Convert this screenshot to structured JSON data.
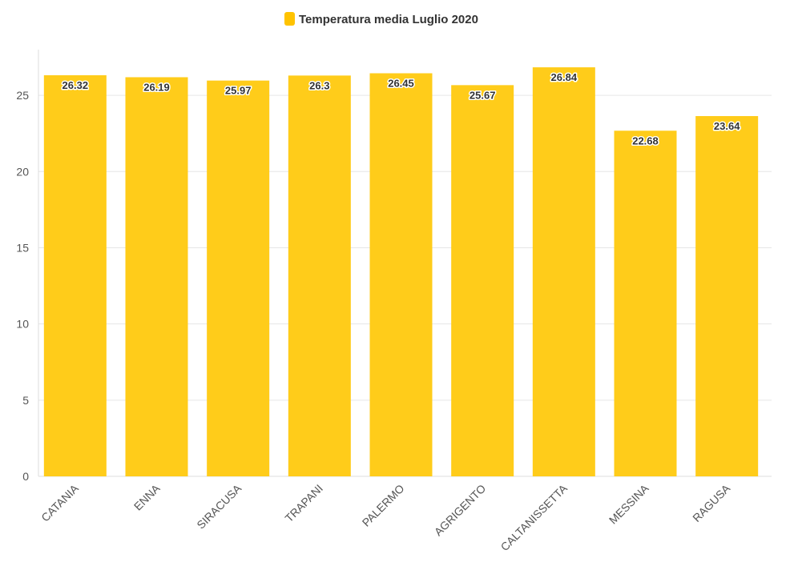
{
  "chart_data": {
    "type": "bar",
    "categories": [
      "CATANIA",
      "ENNA",
      "SIRACUSA",
      "TRAPANI",
      "PALERMO",
      "AGRIGENTO",
      "CALTANISSETTA",
      "MESSINA",
      "RAGUSA"
    ],
    "series": [
      {
        "name": "Temperatura media Luglio 2020",
        "values": [
          26.32,
          26.19,
          25.97,
          26.3,
          26.45,
          25.67,
          26.84,
          22.68,
          23.64
        ],
        "labels": [
          "26.32",
          "26.19",
          "25.97",
          "26.3",
          "26.45",
          "25.67",
          "26.84",
          "22.68",
          "23.64"
        ]
      }
    ],
    "ylim": [
      0,
      28
    ],
    "yticks": [
      0,
      5,
      10,
      15,
      20,
      25
    ],
    "ytick_labels": [
      "0",
      "5",
      "10",
      "15",
      "20",
      "25"
    ],
    "grid": true,
    "legend_position": "top-center",
    "colors": {
      "bar": "#FFCC1A",
      "legend_marker": "#FFC300",
      "grid": "#e6e6e6"
    }
  }
}
